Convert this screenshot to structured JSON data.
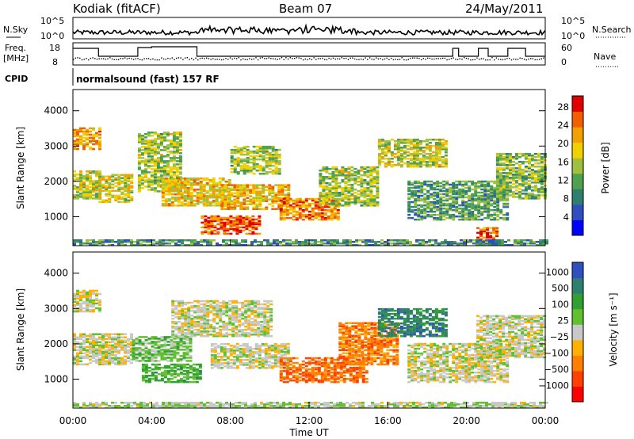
{
  "header": {
    "station": "Kodiak (fitACF)",
    "beam": "Beam 07",
    "date": "24/May/2011"
  },
  "summary_panel": {
    "nsky_label": "N.Sky",
    "nsky_ticks": [
      "10^5",
      "10^0"
    ],
    "nsearch_label": "N.Search",
    "nsearch_ticks": [
      "10^5",
      "10^0"
    ],
    "freq_label": "Freq.",
    "freq_unit": "[MHz]",
    "freq_ticks": [
      "18",
      "8"
    ],
    "nave_label": "Nave",
    "nave_ticks": [
      "60",
      "0"
    ],
    "cpid_label": "CPID",
    "cpid_text": "normalsound (fast) 157 RF"
  },
  "chart_data": [
    {
      "type": "heatmap",
      "name": "power",
      "ylabel": "Slant Range [km]",
      "xlabel": "Time UT",
      "xlim": [
        0,
        24
      ],
      "ylim": [
        180,
        4600
      ],
      "x_ticks": [
        "00:00",
        "04:00",
        "08:00",
        "12:00",
        "16:00",
        "20:00",
        "00:00"
      ],
      "y_ticks": [
        1000,
        2000,
        3000,
        4000
      ],
      "colorbar": {
        "label": "Power [dB]",
        "ticks": [
          "28",
          "24",
          "20",
          "16",
          "12",
          "8",
          "4"
        ],
        "colors": [
          "#0000ff",
          "#2f4fc0",
          "#2f7f6f",
          "#4fa04f",
          "#a0c040",
          "#f0d000",
          "#f0a000",
          "#f06000",
          "#e00000"
        ]
      },
      "echo_bands": [
        {
          "t0": 0.0,
          "t1": 1.3,
          "r0": 2900,
          "r1": 3500,
          "level": 0.75
        },
        {
          "t0": 0.0,
          "t1": 1.3,
          "r0": 1500,
          "r1": 2300,
          "level": 0.55
        },
        {
          "t0": 1.3,
          "t1": 3.0,
          "r0": 1400,
          "r1": 2200,
          "level": 0.6
        },
        {
          "t0": 3.3,
          "t1": 5.5,
          "r0": 1700,
          "r1": 3400,
          "level": 0.5
        },
        {
          "t0": 4.5,
          "t1": 8.0,
          "r0": 1300,
          "r1": 2100,
          "level": 0.65
        },
        {
          "t0": 6.5,
          "t1": 9.5,
          "r0": 500,
          "r1": 1000,
          "level": 0.9
        },
        {
          "t0": 7.5,
          "t1": 11.0,
          "r0": 1200,
          "r1": 1900,
          "level": 0.7
        },
        {
          "t0": 8.0,
          "t1": 10.5,
          "r0": 2200,
          "r1": 3000,
          "level": 0.5
        },
        {
          "t0": 10.5,
          "t1": 13.5,
          "r0": 900,
          "r1": 1500,
          "level": 0.8
        },
        {
          "t0": 12.5,
          "t1": 15.5,
          "r0": 1300,
          "r1": 2400,
          "level": 0.5
        },
        {
          "t0": 15.5,
          "t1": 19.0,
          "r0": 2400,
          "r1": 3200,
          "level": 0.55
        },
        {
          "t0": 17.0,
          "t1": 22.0,
          "r0": 900,
          "r1": 2000,
          "level": 0.35
        },
        {
          "t0": 20.5,
          "t1": 21.5,
          "r0": 300,
          "r1": 700,
          "level": 0.85
        },
        {
          "t0": 21.5,
          "t1": 24.0,
          "r0": 1500,
          "r1": 2800,
          "level": 0.45
        },
        {
          "t0": 0.0,
          "t1": 24.0,
          "r0": 180,
          "r1": 320,
          "level": 0.3
        }
      ]
    },
    {
      "type": "heatmap",
      "name": "velocity",
      "ylabel": "Slant Range [km]",
      "xlabel": "Time UT",
      "xlim": [
        0,
        24
      ],
      "ylim": [
        180,
        4600
      ],
      "x_ticks": [
        "00:00",
        "04:00",
        "08:00",
        "12:00",
        "16:00",
        "20:00",
        "00:00"
      ],
      "y_ticks": [
        1000,
        2000,
        3000,
        4000
      ],
      "colorbar": {
        "label": "Velocity [m s⁻¹]",
        "ticks": [
          "1000",
          "500",
          "100",
          "25",
          "−25",
          "−100",
          "−500",
          "−1000"
        ],
        "colors": [
          "#ff0000",
          "#ff4000",
          "#ff8000",
          "#ffb000",
          "#c8c8c8",
          "#60c030",
          "#30a030",
          "#2f7f6f",
          "#3050c0"
        ]
      },
      "echo_bands": [
        {
          "t0": 0.0,
          "t1": 1.3,
          "r0": 2900,
          "r1": 3500,
          "level": 0.5
        },
        {
          "t0": 0.0,
          "t1": 3.0,
          "r0": 1400,
          "r1": 2300,
          "level": 0.5
        },
        {
          "t0": 3.0,
          "t1": 6.0,
          "r0": 1500,
          "r1": 2200,
          "level": 0.62
        },
        {
          "t0": 3.5,
          "t1": 6.5,
          "r0": 900,
          "r1": 1400,
          "level": 0.7
        },
        {
          "t0": 5.0,
          "t1": 10.0,
          "r0": 2200,
          "r1": 3200,
          "level": 0.5
        },
        {
          "t0": 7.0,
          "t1": 11.0,
          "r0": 1300,
          "r1": 2000,
          "level": 0.5
        },
        {
          "t0": 10.5,
          "t1": 15.0,
          "r0": 900,
          "r1": 1600,
          "level": 0.2
        },
        {
          "t0": 13.5,
          "t1": 16.5,
          "r0": 1400,
          "r1": 2600,
          "level": 0.25
        },
        {
          "t0": 15.5,
          "t1": 19.0,
          "r0": 2200,
          "r1": 3000,
          "level": 0.85
        },
        {
          "t0": 17.0,
          "t1": 22.0,
          "r0": 900,
          "r1": 2000,
          "level": 0.5
        },
        {
          "t0": 20.5,
          "t1": 24.0,
          "r0": 1600,
          "r1": 2800,
          "level": 0.5
        },
        {
          "t0": 0.0,
          "t1": 24.0,
          "r0": 180,
          "r1": 320,
          "level": 0.55
        }
      ]
    }
  ]
}
